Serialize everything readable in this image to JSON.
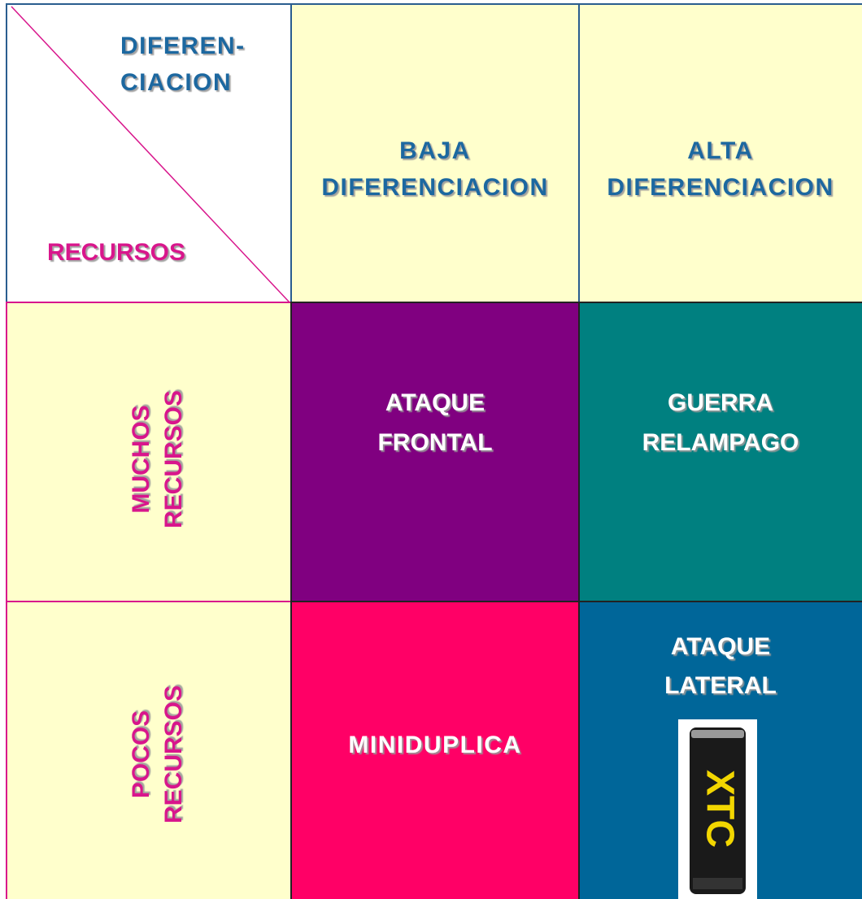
{
  "corner": {
    "top": [
      "DIFEREN-",
      "CIACION"
    ],
    "bottom": "RECURSOS"
  },
  "columns": [
    [
      "BAJA",
      "DIFERENCIACION"
    ],
    [
      "ALTA",
      "DIFERENCIACION"
    ]
  ],
  "rows": [
    {
      "label": [
        "MUCHOS",
        "RECURSOS"
      ],
      "cells": [
        [
          "ATAQUE",
          "FRONTAL"
        ],
        [
          "GUERRA",
          "RELAMPAGO"
        ]
      ]
    },
    {
      "label": [
        "POCOS",
        "RECURSOS"
      ],
      "cells": [
        [
          "MINIDUPLICA"
        ],
        [
          "ATAQUE",
          "LATERAL"
        ]
      ]
    }
  ],
  "can_text": "XTC"
}
